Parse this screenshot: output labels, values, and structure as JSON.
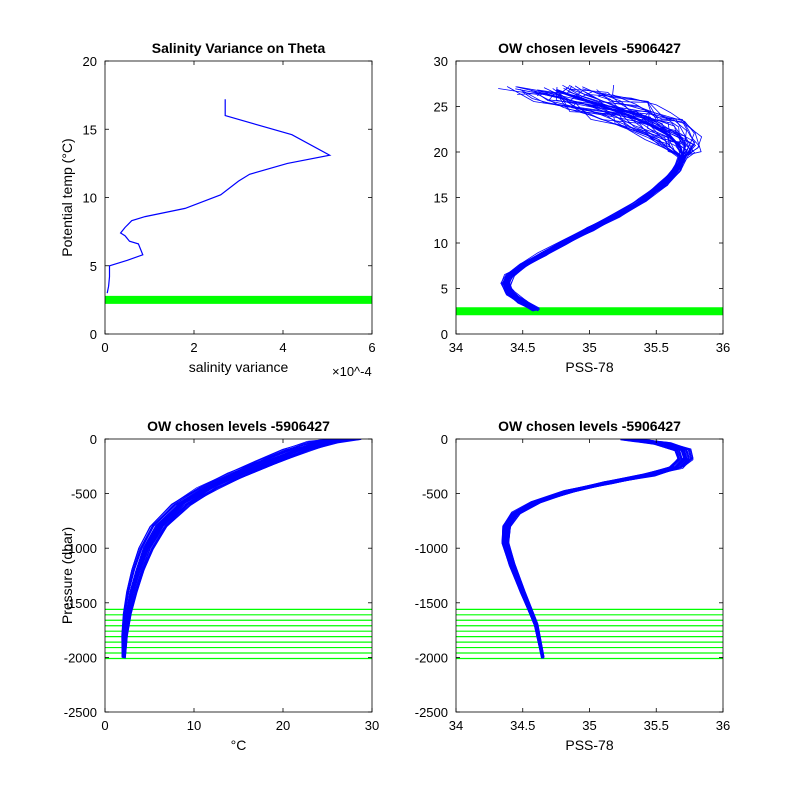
{
  "chart_data": [
    {
      "type": "line",
      "title": "Salinity Variance on Theta",
      "xlabel": "salinity variance",
      "ylabel": "Potential temp (°C)",
      "x_exponent": "×10^-4",
      "xlim": [
        0,
        6
      ],
      "ylim": [
        0,
        20
      ],
      "xticks": [
        0,
        2,
        4,
        6
      ],
      "yticks": [
        0,
        5,
        10,
        15,
        20
      ],
      "series": [
        {
          "color": "#0000ff",
          "points": [
            [
              0.05,
              3.0
            ],
            [
              0.08,
              3.5
            ],
            [
              0.1,
              4.2
            ],
            [
              0.1,
              5.0
            ],
            [
              0.5,
              5.4
            ],
            [
              0.85,
              5.8
            ],
            [
              0.75,
              6.6
            ],
            [
              0.55,
              6.8
            ],
            [
              0.45,
              7.2
            ],
            [
              0.35,
              7.4
            ],
            [
              0.45,
              7.8
            ],
            [
              0.6,
              8.3
            ],
            [
              0.9,
              8.6
            ],
            [
              1.8,
              9.2
            ],
            [
              2.6,
              10.2
            ],
            [
              3.0,
              11.2
            ],
            [
              3.25,
              11.7
            ],
            [
              4.1,
              12.5
            ],
            [
              5.05,
              13.1
            ],
            [
              4.2,
              14.6
            ],
            [
              2.7,
              16.0
            ],
            [
              2.7,
              17.2
            ]
          ]
        }
      ],
      "bands": [
        {
          "color": "#00ff00",
          "y": 2.5
        }
      ]
    },
    {
      "type": "line",
      "title": "OW chosen levels -5906427",
      "xlabel": "PSS-78",
      "ylabel": "",
      "xlim": [
        34,
        36
      ],
      "ylim": [
        0,
        30
      ],
      "xticks": [
        34,
        34.5,
        35,
        35.5,
        36
      ],
      "yticks": [
        0,
        5,
        10,
        15,
        20,
        25,
        30
      ],
      "series": [
        {
          "color": "#0000ff",
          "points": [
            [
              34.6,
              2.7
            ],
            [
              34.5,
              3.5
            ],
            [
              34.4,
              4.5
            ],
            [
              34.37,
              5.5
            ],
            [
              34.4,
              6.5
            ],
            [
              34.5,
              7.5
            ],
            [
              34.65,
              8.8
            ],
            [
              34.8,
              10.0
            ],
            [
              35.0,
              11.5
            ],
            [
              35.2,
              13.0
            ],
            [
              35.4,
              14.7
            ],
            [
              35.55,
              16.5
            ],
            [
              35.65,
              18.0
            ],
            [
              35.7,
              19.5
            ],
            [
              35.68,
              20.5
            ],
            [
              35.6,
              21.8
            ],
            [
              35.45,
              23.0
            ],
            [
              35.3,
              24.0
            ],
            [
              35.1,
              25.0
            ],
            [
              34.9,
              26.0
            ],
            [
              34.75,
              26.8
            ]
          ]
        }
      ],
      "bands": [
        {
          "color": "#00ff00",
          "y": 2.5
        }
      ]
    },
    {
      "type": "line",
      "title": "OW chosen levels -5906427",
      "xlabel": "°C",
      "ylabel": "Pressure (dbar)",
      "xlim": [
        0,
        30
      ],
      "ylim": [
        -2500,
        0
      ],
      "xticks": [
        0,
        10,
        20,
        30
      ],
      "yticks": [
        -2500,
        -2000,
        -1500,
        -1000,
        -500,
        0
      ],
      "series": [
        {
          "color": "#0000ff",
          "points": [
            [
              2.1,
              -2000
            ],
            [
              2.2,
              -1800
            ],
            [
              2.5,
              -1600
            ],
            [
              3.0,
              -1400
            ],
            [
              3.7,
              -1200
            ],
            [
              4.6,
              -1000
            ],
            [
              6.0,
              -800
            ],
            [
              8.5,
              -600
            ],
            [
              11.5,
              -450
            ],
            [
              15.0,
              -320
            ],
            [
              18.5,
              -200
            ],
            [
              21.5,
              -100
            ],
            [
              24.5,
              -30
            ],
            [
              27.0,
              0
            ]
          ]
        }
      ],
      "hlines": [
        {
          "color": "#00ff00",
          "y": [
            -1560,
            -1610,
            -1660,
            -1710,
            -1760,
            -1810,
            -1860,
            -1910,
            -1960,
            -2010
          ]
        }
      ]
    },
    {
      "type": "line",
      "title": "OW chosen levels -5906427",
      "xlabel": "PSS-78",
      "ylabel": "",
      "xlim": [
        34,
        36
      ],
      "ylim": [
        -2500,
        0
      ],
      "xticks": [
        34,
        34.5,
        35,
        35.5,
        36
      ],
      "yticks": [
        -2500,
        -2000,
        -1500,
        -1000,
        -500,
        0
      ],
      "series": [
        {
          "color": "#0000ff",
          "points": [
            [
              34.65,
              -2000
            ],
            [
              34.6,
              -1700
            ],
            [
              34.5,
              -1400
            ],
            [
              34.42,
              -1150
            ],
            [
              34.37,
              -950
            ],
            [
              34.38,
              -800
            ],
            [
              34.45,
              -680
            ],
            [
              34.6,
              -580
            ],
            [
              34.85,
              -480
            ],
            [
              35.15,
              -400
            ],
            [
              35.45,
              -330
            ],
            [
              35.65,
              -260
            ],
            [
              35.72,
              -180
            ],
            [
              35.7,
              -100
            ],
            [
              35.55,
              -40
            ],
            [
              35.3,
              0
            ]
          ]
        }
      ],
      "hlines": [
        {
          "color": "#00ff00",
          "y": [
            -1560,
            -1610,
            -1660,
            -1710,
            -1760,
            -1810,
            -1860,
            -1910,
            -1960,
            -2010
          ]
        }
      ]
    }
  ]
}
